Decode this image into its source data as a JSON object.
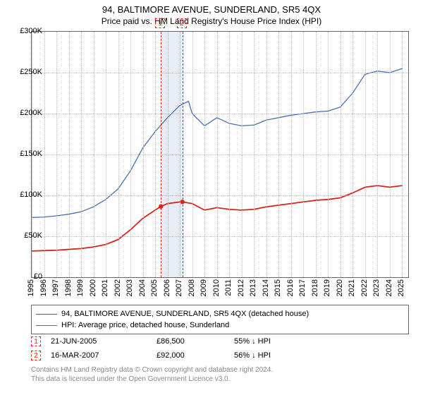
{
  "title": "94, BALTIMORE AVENUE, SUNDERLAND, SR5 4QX",
  "subtitle": "Price paid vs. HM Land Registry's House Price Index (HPI)",
  "chart": {
    "type": "line",
    "background_color": "#ffffff",
    "border_color": "#666666",
    "grid_color": "#bbbbbb",
    "ylim": [
      0,
      300000
    ],
    "ytick_step": 50000,
    "ytick_labels": [
      "£0",
      "£50K",
      "£100K",
      "£150K",
      "£200K",
      "£250K",
      "£300K"
    ],
    "xlim": [
      1995,
      2025.5
    ],
    "xticks": [
      1995,
      1996,
      1997,
      1998,
      1999,
      2000,
      2001,
      2002,
      2003,
      2004,
      2005,
      2006,
      2007,
      2008,
      2009,
      2010,
      2011,
      2012,
      2013,
      2014,
      2015,
      2016,
      2017,
      2018,
      2019,
      2020,
      2021,
      2022,
      2023,
      2024,
      2025
    ],
    "label_fontsize": 11,
    "series": [
      {
        "name": "property",
        "label": "94, BALTIMORE AVENUE, SUNDERLAND, SR5 4QX (detached house)",
        "color": "#d9241b",
        "line_width": 1.8,
        "points": [
          [
            1995,
            32000
          ],
          [
            1996,
            32500
          ],
          [
            1997,
            33000
          ],
          [
            1998,
            34000
          ],
          [
            1999,
            35000
          ],
          [
            2000,
            37000
          ],
          [
            2001,
            40000
          ],
          [
            2002,
            46000
          ],
          [
            2003,
            58000
          ],
          [
            2004,
            72000
          ],
          [
            2005,
            82000
          ],
          [
            2005.47,
            86500
          ],
          [
            2006,
            90000
          ],
          [
            2007,
            92000
          ],
          [
            2007.21,
            92000
          ],
          [
            2008,
            90000
          ],
          [
            2009,
            82000
          ],
          [
            2010,
            85000
          ],
          [
            2011,
            83000
          ],
          [
            2012,
            82000
          ],
          [
            2013,
            83000
          ],
          [
            2014,
            86000
          ],
          [
            2015,
            88000
          ],
          [
            2016,
            90000
          ],
          [
            2017,
            92000
          ],
          [
            2018,
            94000
          ],
          [
            2019,
            95000
          ],
          [
            2020,
            97000
          ],
          [
            2021,
            103000
          ],
          [
            2022,
            110000
          ],
          [
            2023,
            112000
          ],
          [
            2024,
            110000
          ],
          [
            2025,
            112000
          ]
        ]
      },
      {
        "name": "hpi",
        "label": "HPI: Average price, detached house, Sunderland",
        "color": "#4a6fb3",
        "line_width": 1.3,
        "points": [
          [
            1995,
            73000
          ],
          [
            1996,
            73500
          ],
          [
            1997,
            75000
          ],
          [
            1998,
            77000
          ],
          [
            1999,
            80000
          ],
          [
            2000,
            86000
          ],
          [
            2001,
            95000
          ],
          [
            2002,
            108000
          ],
          [
            2003,
            130000
          ],
          [
            2004,
            158000
          ],
          [
            2005,
            178000
          ],
          [
            2006,
            195000
          ],
          [
            2007,
            210000
          ],
          [
            2007.7,
            215000
          ],
          [
            2008,
            200000
          ],
          [
            2009,
            185000
          ],
          [
            2010,
            195000
          ],
          [
            2011,
            188000
          ],
          [
            2012,
            185000
          ],
          [
            2013,
            186000
          ],
          [
            2014,
            192000
          ],
          [
            2015,
            195000
          ],
          [
            2016,
            198000
          ],
          [
            2017,
            200000
          ],
          [
            2018,
            202000
          ],
          [
            2019,
            203000
          ],
          [
            2020,
            208000
          ],
          [
            2021,
            225000
          ],
          [
            2022,
            248000
          ],
          [
            2023,
            252000
          ],
          [
            2024,
            250000
          ],
          [
            2025,
            255000
          ]
        ]
      }
    ],
    "sale_markers": [
      {
        "num": "1",
        "year": 2005.47
      },
      {
        "num": "2",
        "year": 2007.21
      }
    ],
    "sale_band": {
      "start_year": 2005.47,
      "end_year": 2007.21,
      "color": "#e8edf5"
    }
  },
  "legend": {
    "border_color": "#666666",
    "fontsize": 11,
    "items": [
      {
        "color": "#d9241b",
        "line_width": 1.8,
        "label": "94, BALTIMORE AVENUE, SUNDERLAND, SR5 4QX (detached house)"
      },
      {
        "color": "#4a6fb3",
        "line_width": 1.3,
        "label": "HPI: Average price, detached house, Sunderland"
      }
    ]
  },
  "sales_table": {
    "marker_border_color": "#d9241b",
    "rows": [
      {
        "num": "1",
        "date": "21-JUN-2005",
        "price": "£86,500",
        "pct": "55% ↓ HPI"
      },
      {
        "num": "2",
        "date": "16-MAR-2007",
        "price": "£92,000",
        "pct": "56% ↓ HPI"
      }
    ]
  },
  "attribution": {
    "color": "#888888",
    "line1": "Contains HM Land Registry data © Crown copyright and database right 2024.",
    "line2": "This data is licensed under the Open Government Licence v3.0."
  }
}
